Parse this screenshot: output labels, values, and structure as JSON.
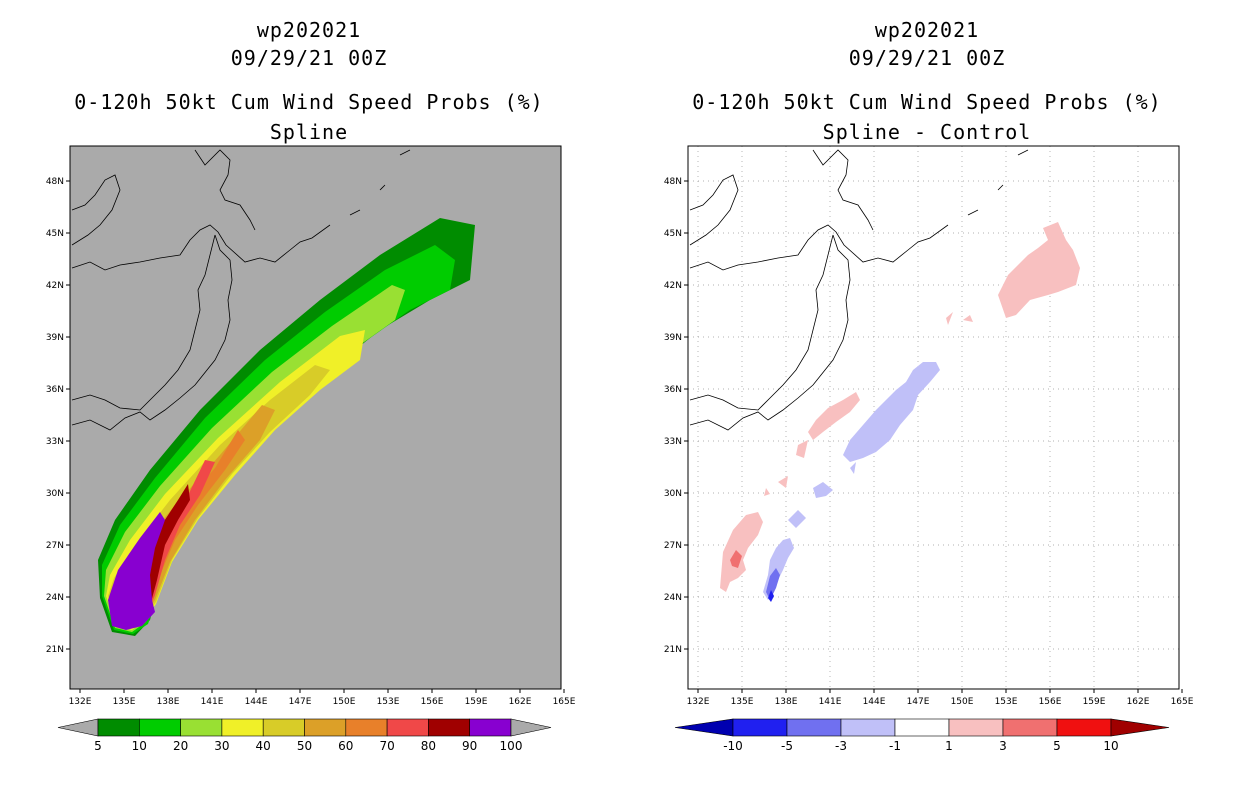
{
  "left_panel": {
    "storm_id": "wp202021",
    "datetime": "09/29/21 00Z",
    "product": "0-120h 50kt Cum Wind Speed Probs (%)",
    "subtitle": "Spline",
    "colorbar": {
      "labels": [
        "5",
        "10",
        "20",
        "30",
        "40",
        "50",
        "60",
        "70",
        "80",
        "90",
        "100"
      ],
      "colors": [
        "#008c00",
        "#00cc00",
        "#99e033",
        "#f0f028",
        "#d8cc28",
        "#dca028",
        "#e8802a",
        "#f04848",
        "#a00000",
        "#8800d0"
      ]
    }
  },
  "right_panel": {
    "storm_id": "wp202021",
    "datetime": "09/29/21 00Z",
    "product": "0-120h 50kt Cum Wind Speed Probs (%)",
    "subtitle": "Spline - Control",
    "colorbar": {
      "labels": [
        "-10",
        "-5",
        "-3",
        "-1",
        "1",
        "3",
        "5",
        "10"
      ],
      "colors": [
        "#0000b0",
        "#2020f0",
        "#7070f0",
        "#c0c0f8",
        "#ffffff",
        "#f8c0c0",
        "#f07070",
        "#f01010",
        "#a00000"
      ]
    }
  },
  "axes": {
    "lat_labels": [
      "48N",
      "45N",
      "42N",
      "39N",
      "36N",
      "33N",
      "30N",
      "27N",
      "24N",
      "21N"
    ],
    "lon_labels": [
      "132E",
      "135E",
      "138E",
      "141E",
      "144E",
      "147E",
      "150E",
      "153E",
      "156E",
      "159E",
      "162E",
      "165E"
    ]
  },
  "colors": {
    "map_bg_left": "#aaaaaa",
    "map_bg_right": "#ffffff"
  }
}
